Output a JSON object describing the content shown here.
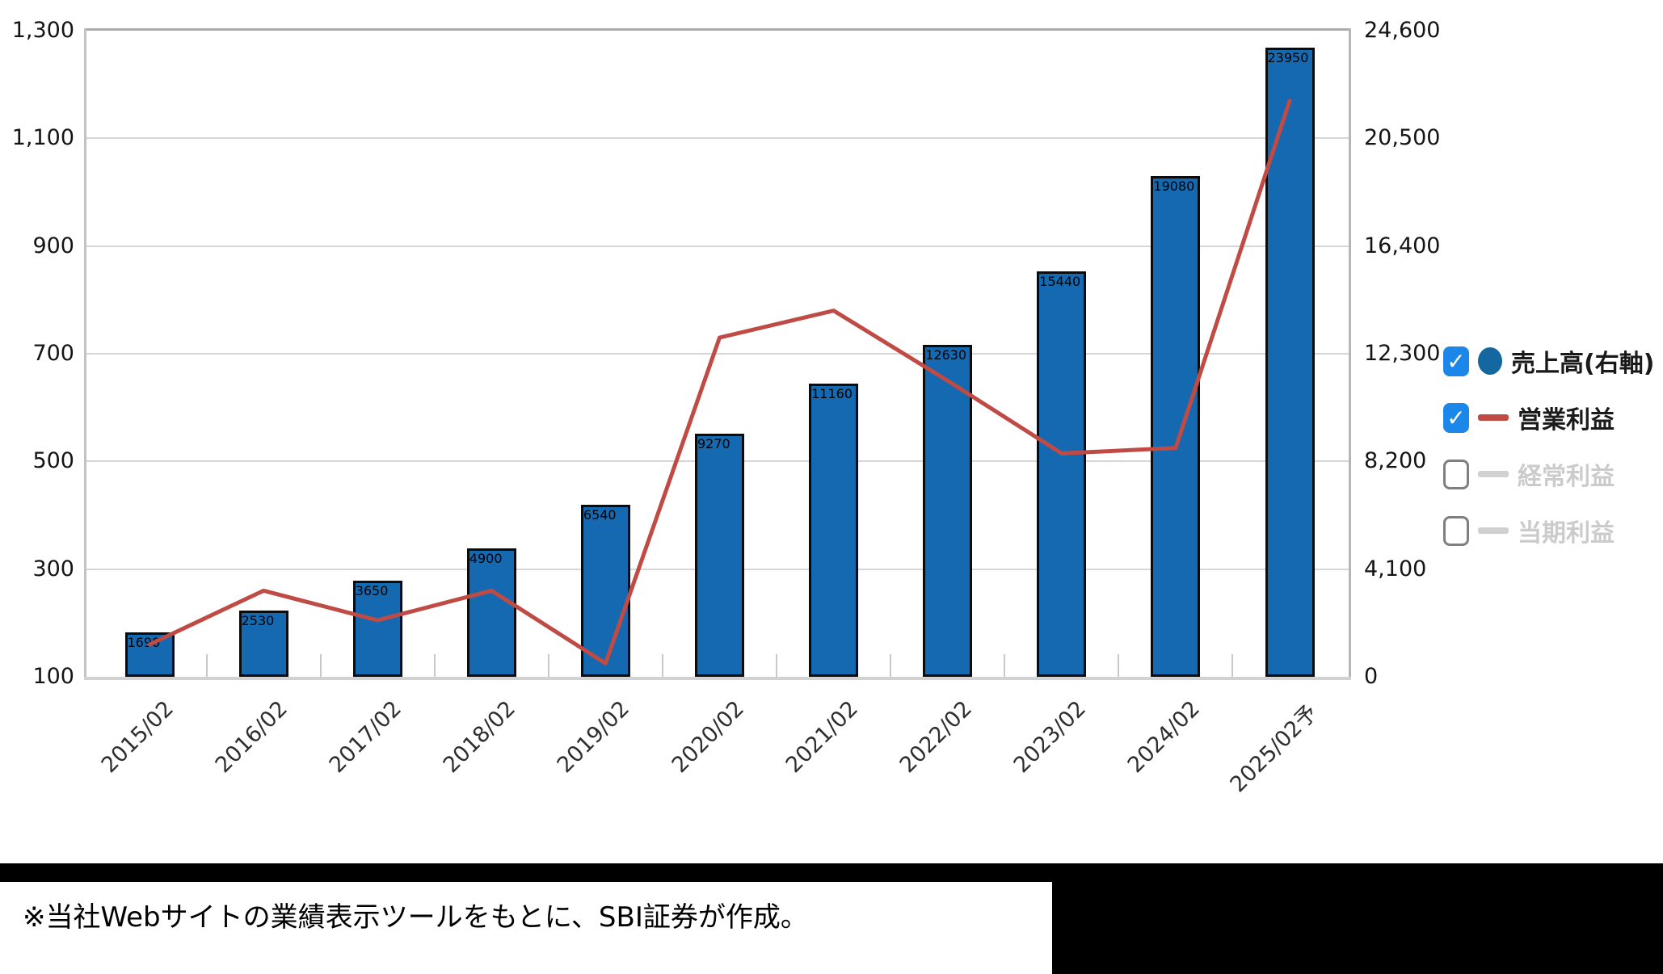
{
  "chart_data": {
    "type": "bar",
    "subtype": "bar-line-combo",
    "categories": [
      "2015/02",
      "2016/02",
      "2017/02",
      "2018/02",
      "2019/02",
      "2020/02",
      "2021/02",
      "2022/02",
      "2023/02",
      "2024/02",
      "2025/02予"
    ],
    "series": [
      {
        "name": "売上高(右軸)",
        "type": "bar",
        "axis": "right",
        "color": "#1569b0",
        "visible": true,
        "values": [
          1690,
          2530,
          3650,
          4900,
          6540,
          9270,
          11160,
          12630,
          15440,
          19080,
          23950
        ]
      },
      {
        "name": "営業利益",
        "type": "line",
        "axis": "left",
        "color": "#c04a44",
        "visible": true,
        "values": [
          160,
          260,
          205,
          260,
          125,
          730,
          780,
          650,
          515,
          525,
          1170
        ]
      },
      {
        "name": "経常利益",
        "type": "line",
        "axis": "left",
        "color": "#d0d0d0",
        "visible": false
      },
      {
        "name": "当期利益",
        "type": "line",
        "axis": "left",
        "color": "#d0d0d0",
        "visible": false
      }
    ],
    "left_axis": {
      "min": 100,
      "max": 1300,
      "tick_values": [
        1300,
        1100,
        900,
        700,
        500,
        300,
        100
      ],
      "tick_labels": [
        "1,300",
        "1,100",
        "900",
        "700",
        "500",
        "300",
        "100"
      ]
    },
    "right_axis": {
      "min": 0,
      "max": 24600,
      "tick_values": [
        24600,
        20500,
        16400,
        12300,
        8200,
        4100,
        0
      ],
      "tick_labels": [
        "24,600",
        "20,500",
        "16,400",
        "12,300",
        "8,200",
        "4,100",
        "0"
      ]
    },
    "grid": true,
    "legend_position": "right"
  },
  "legend": {
    "items": [
      {
        "label": "売上高(右軸)",
        "checked": true,
        "marker": "circle",
        "marker_color": "#14679f"
      },
      {
        "label": "営業利益",
        "checked": true,
        "marker": "line",
        "marker_color": "#c04a44"
      },
      {
        "label": "経常利益",
        "checked": false,
        "marker": "line",
        "marker_color": "#d0d0d0"
      },
      {
        "label": "当期利益",
        "checked": false,
        "marker": "line",
        "marker_color": "#d0d0d0"
      }
    ],
    "check_glyph": "✓"
  },
  "footer": {
    "note": "※当社Webサイトの業績表示ツールをもとに、SBI証券が作成。"
  },
  "colors": {
    "bar_fill": "#1569b0",
    "bar_border": "#0c0c0c",
    "profit_line": "#c04a44",
    "checkbox_on": "#1b87e8",
    "gridline": "#d6d6d6",
    "disabled_text": "#cbcbcb"
  }
}
